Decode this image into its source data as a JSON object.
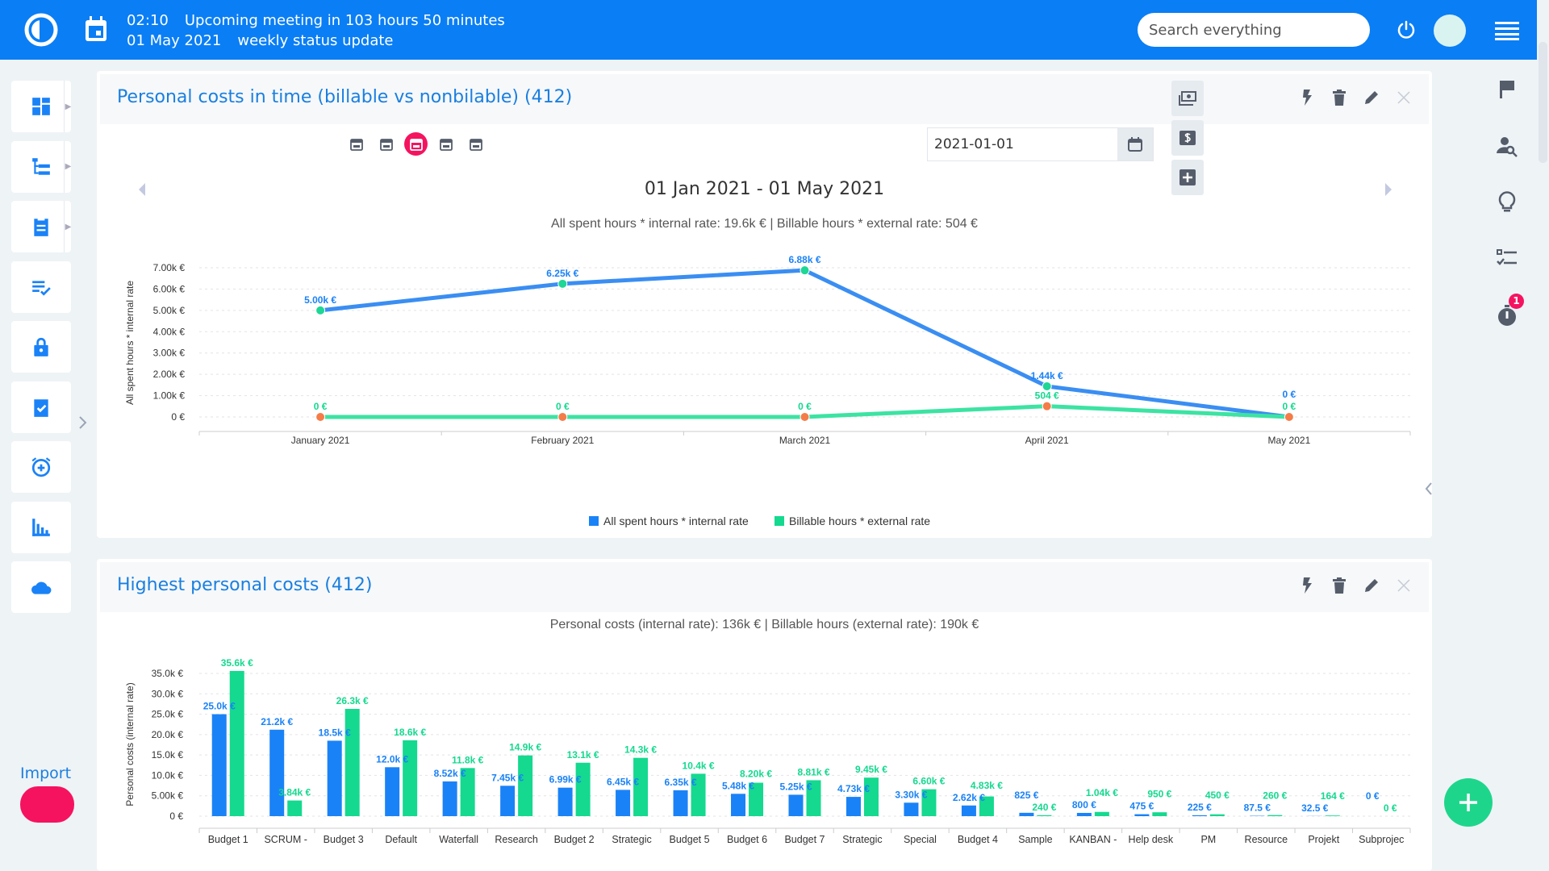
{
  "header": {
    "time": "02:10",
    "meeting_text": "Upcoming meeting in 103 hours 50 minutes",
    "date": "01 May 2021",
    "meeting_name": "weekly status update",
    "search_placeholder": "Search everything"
  },
  "sidebar": {
    "items": [
      {
        "name": "dashboard",
        "icon": "dashboard-icon"
      },
      {
        "name": "projects",
        "icon": "project-tree-icon"
      },
      {
        "name": "tasks",
        "icon": "clipboard-icon"
      },
      {
        "name": "checklist",
        "icon": "list-check-icon"
      },
      {
        "name": "administration",
        "icon": "lock-icon"
      },
      {
        "name": "approvals",
        "icon": "clipboard-check-icon"
      },
      {
        "name": "reminders",
        "icon": "alarm-plus-icon"
      },
      {
        "name": "reports",
        "icon": "bar-chart-icon"
      },
      {
        "name": "cloud",
        "icon": "cloud-icon"
      }
    ],
    "import_label": "Import"
  },
  "panel1": {
    "title": "Personal costs in time (billable vs nonbilable) (412)",
    "date_value": "2021-01-01",
    "period_title": "01 Jan 2021 - 01 May 2021",
    "summary": "All spent hours * internal rate: 19.6k € | Billable hours * external rate: 504 €"
  },
  "panel2": {
    "title": "Highest personal costs (412)",
    "summary": "Personal costs (internal rate): 136k € | Billable hours (external rate): 190k €"
  },
  "right_rail": {
    "timer_badge": "1"
  },
  "colors": {
    "brand": "#0a7ef5",
    "internal": "#1a82f7",
    "billable": "#14d98f",
    "accent": "#f5135f",
    "marker_orange": "#f57c48"
  },
  "chart_data": [
    {
      "type": "line",
      "ylabel": "All spent hours * internal rate",
      "categories": [
        "January 2021",
        "February 2021",
        "March 2021",
        "April 2021",
        "May 2021"
      ],
      "yticks": [
        "0 €",
        "1.00k €",
        "2.00k €",
        "3.00k €",
        "4.00k €",
        "5.00k €",
        "6.00k €",
        "7.00k €"
      ],
      "ylim": [
        0,
        7000
      ],
      "grid": true,
      "legend": "bottom",
      "series": [
        {
          "name": "All spent hours * internal rate",
          "values": [
            5000,
            6250,
            6880,
            1440,
            0
          ],
          "labels": [
            "5.00k €",
            "6.25k €",
            "6.88k €",
            "1.44k €",
            "0 €"
          ]
        },
        {
          "name": "Billable hours * external rate",
          "values": [
            0,
            0,
            0,
            504,
            0
          ],
          "labels": [
            "0 €",
            "0 €",
            "0 €",
            "504 €",
            "0 €"
          ]
        }
      ]
    },
    {
      "type": "bar",
      "ylabel": "Personal costs (internal rate)",
      "categories": [
        "Budget 1",
        "SCRUM -",
        "Budget 3",
        "Default",
        "Waterfall",
        "Research",
        "Budget 2",
        "Strategic",
        "Budget 5",
        "Budget 6",
        "Budget 7",
        "Strategic",
        "Special",
        "Budget 4",
        "Sample",
        "KANBAN -",
        "Help desk",
        "PM",
        "Resource",
        "Projekt",
        "Subprojec"
      ],
      "yticks": [
        "0 €",
        "5.00k €",
        "10.0k €",
        "15.0k €",
        "20.0k €",
        "25.0k €",
        "30.0k €",
        "35.0k €"
      ],
      "ylim": [
        0,
        35000
      ],
      "grid": true,
      "series": [
        {
          "name": "internal",
          "values": [
            25000,
            21200,
            18500,
            12000,
            8520,
            7450,
            6990,
            6450,
            6350,
            5480,
            5250,
            4730,
            3300,
            2620,
            825,
            800,
            475,
            225,
            87.5,
            32.5,
            0
          ],
          "labels": [
            "25.0k €",
            "21.2k €",
            "18.5k €",
            "12.0k €",
            "8.52k €",
            "7.45k €",
            "6.99k €",
            "6.45k €",
            "6.35k €",
            "5.48k €",
            "5.25k €",
            "4.73k €",
            "3.30k €",
            "2.62k €",
            "825 €",
            "800 €",
            "475 €",
            "225 €",
            "87.5 €",
            "32.5 €",
            "0 €"
          ]
        },
        {
          "name": "billable",
          "values": [
            35600,
            3840,
            26300,
            18600,
            11800,
            14900,
            13100,
            14300,
            10400,
            8200,
            8810,
            9450,
            6600,
            4830,
            240,
            1040,
            950,
            450,
            260,
            164,
            0
          ],
          "labels": [
            "35.6k €",
            "3.84k €",
            "26.3k €",
            "18.6k €",
            "11.8k €",
            "14.9k €",
            "13.1k €",
            "14.3k €",
            "10.4k €",
            "8.20k €",
            "8.81k €",
            "9.45k €",
            "6.60k €",
            "4.83k €",
            "240 €",
            "1.04k €",
            "950 €",
            "450 €",
            "260 €",
            "164 €",
            "0 €"
          ]
        }
      ]
    }
  ]
}
